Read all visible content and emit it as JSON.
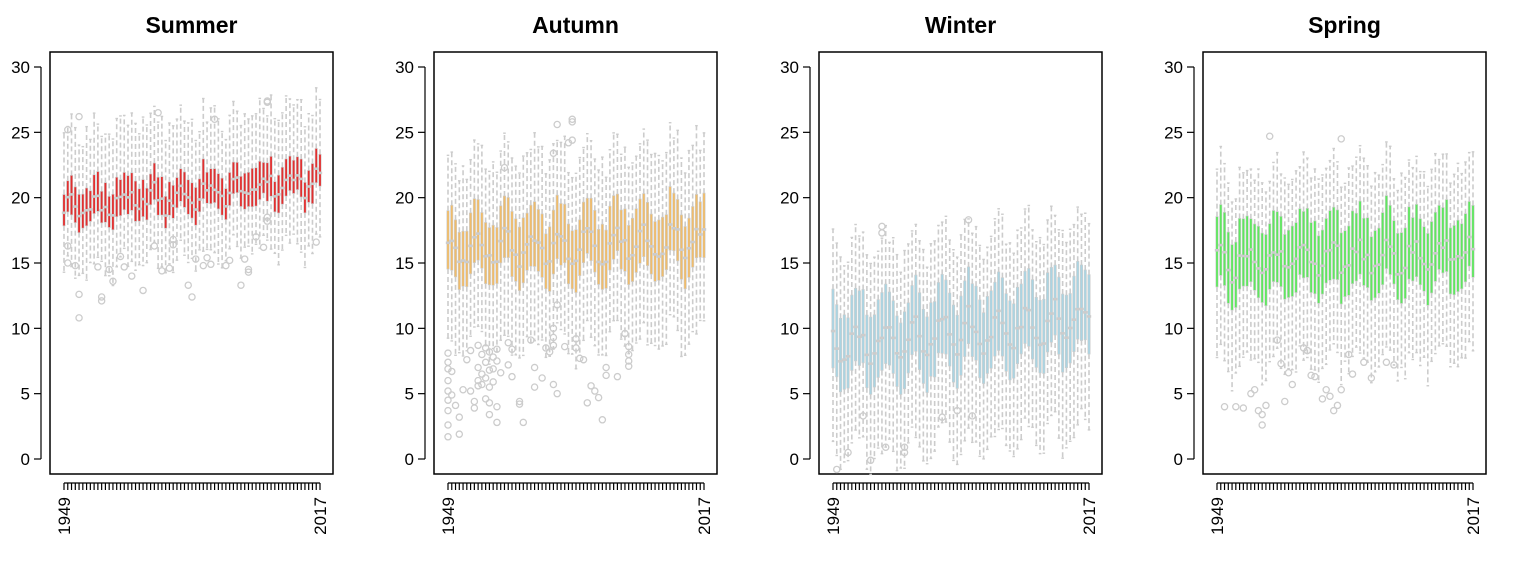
{
  "chart_data": [
    {
      "type": "box",
      "title": "Summer",
      "box_color": "#e32f2f",
      "element_color": "#cccccc",
      "ylim": [
        -1,
        31
      ],
      "yticks": [
        0,
        5,
        10,
        15,
        20,
        25,
        30
      ],
      "x_range": [
        1949,
        2017
      ],
      "x_tick_labels": [
        "1949",
        "2017"
      ],
      "q1_start": 17.9,
      "q1_amp": 0.75,
      "q1_trend": 2.2,
      "q1_phase": 0.4,
      "iqr": 2.7,
      "upper_whisker": 4.2,
      "lower_whisker": 3.6,
      "outliers": [
        [
          1950,
          25.2
        ],
        [
          1950,
          16.3
        ],
        [
          1950,
          15.0
        ],
        [
          1952,
          14.8
        ],
        [
          1953,
          26.2
        ],
        [
          1953,
          12.6
        ],
        [
          1953,
          10.8
        ],
        [
          1958,
          14.7
        ],
        [
          1959,
          12.4
        ],
        [
          1959,
          12.1
        ],
        [
          1961,
          14.5
        ],
        [
          1962,
          13.6
        ],
        [
          1964,
          15.5
        ],
        [
          1965,
          14.7
        ],
        [
          1967,
          14.0
        ],
        [
          1970,
          12.9
        ],
        [
          1973,
          16.3
        ],
        [
          1974,
          26.5
        ],
        [
          1975,
          14.4
        ],
        [
          1977,
          14.6
        ],
        [
          1978,
          16.8
        ],
        [
          1978,
          16.4
        ],
        [
          1982,
          13.3
        ],
        [
          1983,
          12.4
        ],
        [
          1984,
          15.3
        ],
        [
          1986,
          14.8
        ],
        [
          1987,
          15.4
        ],
        [
          1988,
          14.9
        ],
        [
          1989,
          26.0
        ],
        [
          1992,
          14.8
        ],
        [
          1993,
          15.2
        ],
        [
          1996,
          13.3
        ],
        [
          1997,
          15.3
        ],
        [
          1998,
          14.3
        ],
        [
          1998,
          14.5
        ],
        [
          2000,
          17.0
        ],
        [
          2002,
          16.2
        ],
        [
          2003,
          18.5
        ],
        [
          2003,
          18.2
        ],
        [
          2003,
          27.3
        ],
        [
          2003,
          27.4
        ],
        [
          2016,
          16.6
        ]
      ]
    },
    {
      "type": "box",
      "title": "Autumn",
      "box_color": "#efbc6b",
      "element_color": "#cccccc",
      "ylim": [
        -1,
        31
      ],
      "yticks": [
        0,
        5,
        10,
        15,
        20,
        25,
        30
      ],
      "x_range": [
        1949,
        2017
      ],
      "x_tick_labels": [
        "1949",
        "2017"
      ],
      "q1_start": 13.9,
      "q1_amp": 1.2,
      "q1_trend": 0.6,
      "q1_phase": 1.3,
      "iqr": 4.6,
      "upper_whisker": 4.6,
      "lower_whisker": 5.4,
      "outliers": [
        [
          1949,
          8.1
        ],
        [
          1949,
          7.4
        ],
        [
          1949,
          6.9
        ],
        [
          1949,
          6.0
        ],
        [
          1949,
          5.2
        ],
        [
          1949,
          4.5
        ],
        [
          1949,
          3.7
        ],
        [
          1949,
          2.6
        ],
        [
          1949,
          1.7
        ],
        [
          1950,
          6.7
        ],
        [
          1950,
          4.9
        ],
        [
          1951,
          4.1
        ],
        [
          1952,
          3.2
        ],
        [
          1952,
          1.9
        ],
        [
          1953,
          5.3
        ],
        [
          1954,
          7.6
        ],
        [
          1955,
          8.3
        ],
        [
          1955,
          5.2
        ],
        [
          1956,
          4.4
        ],
        [
          1956,
          3.9
        ],
        [
          1957,
          8.7
        ],
        [
          1957,
          7.0
        ],
        [
          1957,
          6.0
        ],
        [
          1957,
          5.6
        ],
        [
          1958,
          8.0
        ],
        [
          1958,
          6.5
        ],
        [
          1958,
          5.7
        ],
        [
          1959,
          8.5
        ],
        [
          1959,
          7.4
        ],
        [
          1959,
          6.2
        ],
        [
          1959,
          4.6
        ],
        [
          1960,
          8.2
        ],
        [
          1960,
          6.8
        ],
        [
          1960,
          5.5
        ],
        [
          1960,
          4.3
        ],
        [
          1960,
          3.4
        ],
        [
          1961,
          7.8
        ],
        [
          1961,
          6.9
        ],
        [
          1961,
          5.9
        ],
        [
          1962,
          8.4
        ],
        [
          1962,
          7.5
        ],
        [
          1962,
          4.0
        ],
        [
          1962,
          2.8
        ],
        [
          1963,
          6.6
        ],
        [
          1964,
          22.3
        ],
        [
          1965,
          8.9
        ],
        [
          1965,
          7.2
        ],
        [
          1966,
          8.4
        ],
        [
          1966,
          6.3
        ],
        [
          1968,
          4.4
        ],
        [
          1968,
          4.2
        ],
        [
          1969,
          2.8
        ],
        [
          1971,
          9.1
        ],
        [
          1972,
          7.0
        ],
        [
          1972,
          5.5
        ],
        [
          1974,
          6.2
        ],
        [
          1975,
          8.5
        ],
        [
          1976,
          8.2
        ],
        [
          1977,
          10.0
        ],
        [
          1977,
          9.3
        ],
        [
          1977,
          8.7
        ],
        [
          1977,
          23.4
        ],
        [
          1977,
          5.7
        ],
        [
          1978,
          11.8
        ],
        [
          1978,
          25.6
        ],
        [
          1978,
          5.0
        ],
        [
          1980,
          8.6
        ],
        [
          1981,
          24.2
        ],
        [
          1982,
          24.4
        ],
        [
          1982,
          25.8
        ],
        [
          1982,
          26.0
        ],
        [
          1983,
          9.2
        ],
        [
          1983,
          8.5
        ],
        [
          1984,
          7.7
        ],
        [
          1985,
          7.6
        ],
        [
          1986,
          4.3
        ],
        [
          1987,
          5.6
        ],
        [
          1988,
          5.2
        ],
        [
          1989,
          4.7
        ],
        [
          1990,
          3.0
        ],
        [
          1991,
          7.0
        ],
        [
          1991,
          6.4
        ],
        [
          1994,
          6.3
        ],
        [
          1996,
          9.6
        ],
        [
          1997,
          8.6
        ],
        [
          1997,
          8.0
        ],
        [
          1997,
          7.5
        ],
        [
          1997,
          7.1
        ]
      ]
    },
    {
      "type": "box",
      "title": "Winter",
      "box_color": "#aad4e2",
      "element_color": "#cccccc",
      "ylim": [
        -1,
        31
      ],
      "yticks": [
        0,
        5,
        10,
        15,
        20,
        25,
        30
      ],
      "x_range": [
        1949,
        2017
      ],
      "x_tick_labels": [
        "1949",
        "2017"
      ],
      "q1_start": 6.1,
      "q1_amp": 1.3,
      "q1_trend": 1.9,
      "q1_phase": 2.1,
      "iqr": 5.7,
      "upper_whisker": 4.3,
      "lower_whisker": 5.9,
      "outliers": [
        [
          1950,
          -0.8
        ],
        [
          1953,
          0.5
        ],
        [
          1957,
          3.3
        ],
        [
          1959,
          -0.1
        ],
        [
          1962,
          17.8
        ],
        [
          1962,
          17.3
        ],
        [
          1963,
          0.9
        ],
        [
          1968,
          0.5
        ],
        [
          1968,
          0.9
        ],
        [
          1978,
          3.2
        ],
        [
          1982,
          3.7
        ],
        [
          1985,
          18.3
        ],
        [
          1986,
          3.3
        ]
      ]
    },
    {
      "type": "box",
      "title": "Spring",
      "box_color": "#5ee85e",
      "element_color": "#cccccc",
      "ylim": [
        -1,
        31
      ],
      "yticks": [
        0,
        5,
        10,
        15,
        20,
        25,
        30
      ],
      "x_range": [
        1949,
        2017
      ],
      "x_tick_labels": [
        "1949",
        "2017"
      ],
      "q1_start": 12.7,
      "q1_amp": 1.0,
      "q1_trend": 0.7,
      "q1_phase": 0.9,
      "iqr": 5.2,
      "upper_whisker": 3.9,
      "lower_whisker": 5.6,
      "outliers": [
        [
          1951,
          4.0
        ],
        [
          1954,
          4.0
        ],
        [
          1956,
          3.9
        ],
        [
          1958,
          5.0
        ],
        [
          1959,
          5.3
        ],
        [
          1960,
          3.7
        ],
        [
          1961,
          3.4
        ],
        [
          1961,
          2.6
        ],
        [
          1962,
          4.1
        ],
        [
          1963,
          24.7
        ],
        [
          1965,
          9.1
        ],
        [
          1966,
          7.3
        ],
        [
          1967,
          4.4
        ],
        [
          1968,
          6.6
        ],
        [
          1969,
          5.7
        ],
        [
          1972,
          8.5
        ],
        [
          1973,
          8.3
        ],
        [
          1974,
          6.4
        ],
        [
          1975,
          6.3
        ],
        [
          1977,
          4.6
        ],
        [
          1978,
          5.3
        ],
        [
          1979,
          4.8
        ],
        [
          1980,
          3.7
        ],
        [
          1981,
          4.1
        ],
        [
          1982,
          5.3
        ],
        [
          1982,
          24.5
        ],
        [
          1984,
          8.0
        ],
        [
          1985,
          6.5
        ],
        [
          1988,
          7.4
        ],
        [
          1990,
          6.2
        ],
        [
          1994,
          7.4
        ],
        [
          1996,
          7.2
        ]
      ]
    }
  ]
}
